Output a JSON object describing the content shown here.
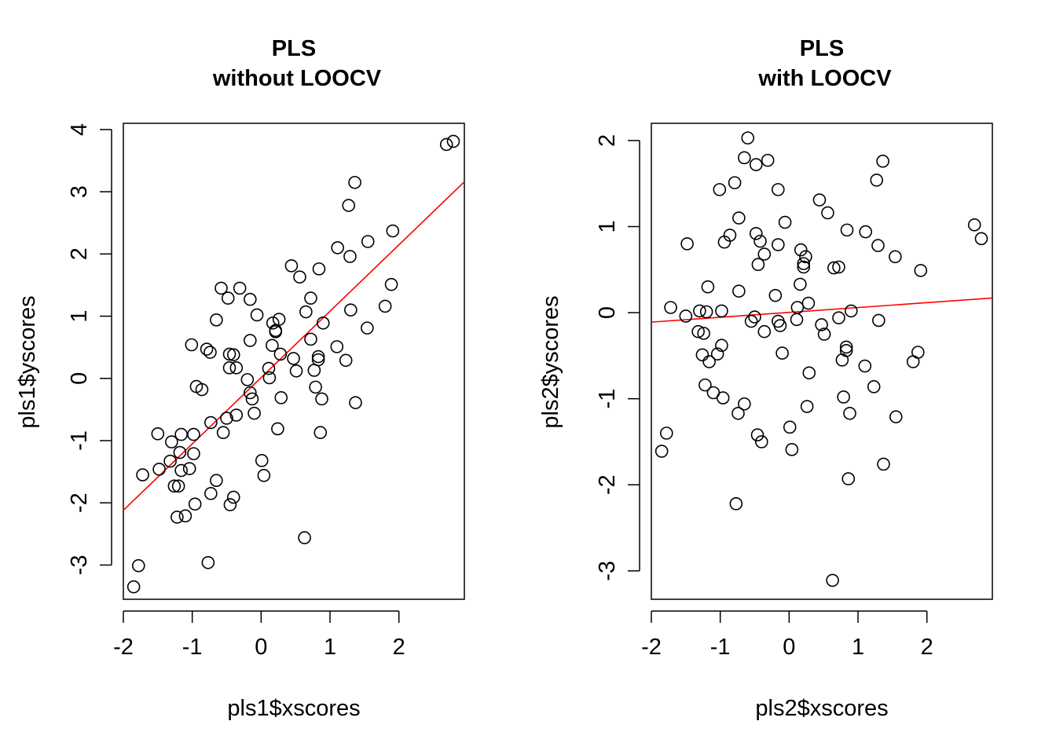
{
  "chart_data": [
    {
      "type": "scatter",
      "title": [
        "PLS",
        "without LOOCV"
      ],
      "xlabel": "pls1$xscores",
      "ylabel": "pls1$yscores",
      "xlim": [
        -2.0,
        2.95
      ],
      "ylim": [
        -3.55,
        4.1
      ],
      "xticks": [
        -2,
        -1,
        0,
        1,
        2
      ],
      "yticks": [
        -3,
        -2,
        -1,
        0,
        1,
        2,
        3,
        4
      ],
      "grid": false,
      "legend": "none",
      "point_color": "#000000",
      "line_color": "#ff0000",
      "fit_line": {
        "x0": -2.0,
        "y0": -2.12,
        "x1": 2.95,
        "y1": 3.16
      },
      "points": [
        [
          -1.85,
          -3.35
        ],
        [
          -1.78,
          -3.01
        ],
        [
          -1.72,
          -1.55
        ],
        [
          -1.5,
          -0.89
        ],
        [
          -1.48,
          -1.46
        ],
        [
          -1.32,
          -1.33
        ],
        [
          -1.3,
          -1.02
        ],
        [
          -1.26,
          -1.73
        ],
        [
          -1.22,
          -2.23
        ],
        [
          -1.2,
          -1.73
        ],
        [
          -1.18,
          -1.19
        ],
        [
          -1.16,
          -1.48
        ],
        [
          -1.16,
          -0.9
        ],
        [
          -1.1,
          -2.21
        ],
        [
          -1.04,
          -1.45
        ],
        [
          -1.01,
          0.54
        ],
        [
          -0.98,
          -1.21
        ],
        [
          -0.98,
          -0.9
        ],
        [
          -0.96,
          -2.02
        ],
        [
          -0.94,
          -0.13
        ],
        [
          -0.86,
          -0.18
        ],
        [
          -0.79,
          0.47
        ],
        [
          -0.77,
          -2.96
        ],
        [
          -0.74,
          0.42
        ],
        [
          -0.73,
          -1.85
        ],
        [
          -0.73,
          -0.71
        ],
        [
          -0.65,
          0.94
        ],
        [
          -0.65,
          -1.64
        ],
        [
          -0.58,
          1.45
        ],
        [
          -0.55,
          -0.87
        ],
        [
          -0.5,
          -0.64
        ],
        [
          -0.48,
          1.29
        ],
        [
          -0.46,
          0.39
        ],
        [
          -0.46,
          0.17
        ],
        [
          -0.45,
          -2.03
        ],
        [
          -0.4,
          0.38
        ],
        [
          -0.4,
          -1.91
        ],
        [
          -0.36,
          -0.59
        ],
        [
          -0.36,
          0.17
        ],
        [
          -0.31,
          1.45
        ],
        [
          -0.2,
          -0.02
        ],
        [
          -0.16,
          1.27
        ],
        [
          -0.16,
          0.61
        ],
        [
          -0.16,
          -0.23
        ],
        [
          -0.13,
          -0.33
        ],
        [
          -0.1,
          -0.56
        ],
        [
          -0.06,
          1.02
        ],
        [
          0.01,
          -1.32
        ],
        [
          0.04,
          -1.56
        ],
        [
          0.11,
          0.16
        ],
        [
          0.12,
          0.01
        ],
        [
          0.16,
          0.53
        ],
        [
          0.17,
          0.89
        ],
        [
          0.21,
          0.75
        ],
        [
          0.21,
          0.77
        ],
        [
          0.24,
          -0.81
        ],
        [
          0.26,
          0.95
        ],
        [
          0.28,
          0.39
        ],
        [
          0.29,
          -0.31
        ],
        [
          0.44,
          1.81
        ],
        [
          0.47,
          0.32
        ],
        [
          0.51,
          0.12
        ],
        [
          0.56,
          1.63
        ],
        [
          0.63,
          -2.56
        ],
        [
          0.65,
          1.07
        ],
        [
          0.72,
          1.29
        ],
        [
          0.72,
          0.63
        ],
        [
          0.77,
          0.13
        ],
        [
          0.79,
          -0.14
        ],
        [
          0.83,
          0.3
        ],
        [
          0.83,
          0.35
        ],
        [
          0.84,
          1.76
        ],
        [
          0.86,
          -0.87
        ],
        [
          0.88,
          -0.33
        ],
        [
          0.9,
          0.89
        ],
        [
          1.1,
          0.51
        ],
        [
          1.11,
          2.1
        ],
        [
          1.23,
          0.29
        ],
        [
          1.27,
          2.78
        ],
        [
          1.29,
          1.96
        ],
        [
          1.3,
          1.1
        ],
        [
          1.36,
          3.15
        ],
        [
          1.37,
          -0.39
        ],
        [
          1.54,
          0.81
        ],
        [
          1.55,
          2.2
        ],
        [
          1.8,
          1.16
        ],
        [
          1.89,
          1.51
        ],
        [
          1.91,
          2.37
        ],
        [
          2.69,
          3.76
        ],
        [
          2.79,
          3.81
        ]
      ]
    },
    {
      "type": "scatter",
      "title": [
        "PLS",
        "with LOOCV"
      ],
      "xlabel": "pls2$xscores",
      "ylabel": "pls2$yscores",
      "xlim": [
        -2.0,
        2.95
      ],
      "ylim": [
        -3.33,
        2.2
      ],
      "xticks": [
        -2,
        -1,
        0,
        1,
        2
      ],
      "yticks": [
        -3,
        -2,
        -1,
        0,
        1,
        2
      ],
      "grid": false,
      "legend": "none",
      "point_color": "#000000",
      "line_color": "#ff0000",
      "fit_line": {
        "x0": -2.0,
        "y0": -0.11,
        "x1": 2.95,
        "y1": 0.17
      },
      "points": [
        [
          -1.85,
          -1.61
        ],
        [
          -1.78,
          -1.4
        ],
        [
          -1.72,
          0.06
        ],
        [
          -1.5,
          -0.04
        ],
        [
          -1.48,
          0.8
        ],
        [
          -1.32,
          -0.22
        ],
        [
          -1.3,
          0.02
        ],
        [
          -1.26,
          -0.49
        ],
        [
          -1.24,
          -0.24
        ],
        [
          -1.22,
          -0.84
        ],
        [
          -1.2,
          0.01
        ],
        [
          -1.18,
          0.3
        ],
        [
          -1.16,
          -0.57
        ],
        [
          -1.1,
          -0.93
        ],
        [
          -1.04,
          -0.48
        ],
        [
          -1.01,
          1.43
        ],
        [
          -0.98,
          -0.38
        ],
        [
          -0.98,
          0.02
        ],
        [
          -0.96,
          -0.99
        ],
        [
          -0.94,
          0.82
        ],
        [
          -0.86,
          0.9
        ],
        [
          -0.79,
          1.51
        ],
        [
          -0.77,
          -2.22
        ],
        [
          -0.74,
          -1.17
        ],
        [
          -0.73,
          1.1
        ],
        [
          -0.73,
          0.25
        ],
        [
          -0.65,
          1.8
        ],
        [
          -0.65,
          -1.06
        ],
        [
          -0.6,
          2.03
        ],
        [
          -0.55,
          -0.1
        ],
        [
          -0.5,
          -0.05
        ],
        [
          -0.48,
          0.92
        ],
        [
          -0.48,
          1.72
        ],
        [
          -0.46,
          -1.42
        ],
        [
          -0.45,
          0.56
        ],
        [
          -0.42,
          0.83
        ],
        [
          -0.4,
          -1.5
        ],
        [
          -0.36,
          0.68
        ],
        [
          -0.36,
          -0.22
        ],
        [
          -0.31,
          1.77
        ],
        [
          -0.2,
          0.2
        ],
        [
          -0.16,
          1.43
        ],
        [
          -0.16,
          0.79
        ],
        [
          -0.16,
          -0.1
        ],
        [
          -0.13,
          -0.15
        ],
        [
          -0.1,
          -0.47
        ],
        [
          -0.06,
          1.05
        ],
        [
          0.01,
          -1.33
        ],
        [
          0.04,
          -1.59
        ],
        [
          0.11,
          -0.08
        ],
        [
          0.12,
          0.06
        ],
        [
          0.16,
          0.33
        ],
        [
          0.17,
          0.73
        ],
        [
          0.21,
          0.53
        ],
        [
          0.21,
          0.57
        ],
        [
          0.24,
          0.65
        ],
        [
          0.26,
          -1.09
        ],
        [
          0.28,
          0.11
        ],
        [
          0.29,
          -0.7
        ],
        [
          0.44,
          1.31
        ],
        [
          0.47,
          -0.14
        ],
        [
          0.51,
          -0.25
        ],
        [
          0.56,
          1.16
        ],
        [
          0.63,
          -3.11
        ],
        [
          0.65,
          0.52
        ],
        [
          0.72,
          0.53
        ],
        [
          0.72,
          -0.06
        ],
        [
          0.77,
          -0.55
        ],
        [
          0.79,
          -0.98
        ],
        [
          0.83,
          -0.4
        ],
        [
          0.83,
          -0.44
        ],
        [
          0.84,
          0.96
        ],
        [
          0.86,
          -1.93
        ],
        [
          0.88,
          -1.17
        ],
        [
          0.9,
          0.02
        ],
        [
          1.1,
          -0.62
        ],
        [
          1.11,
          0.94
        ],
        [
          1.23,
          -0.86
        ],
        [
          1.27,
          1.54
        ],
        [
          1.29,
          0.78
        ],
        [
          1.3,
          -0.09
        ],
        [
          1.36,
          1.76
        ],
        [
          1.37,
          -1.76
        ],
        [
          1.54,
          0.65
        ],
        [
          1.55,
          -1.21
        ],
        [
          1.8,
          -0.57
        ],
        [
          1.87,
          -0.46
        ],
        [
          1.91,
          0.49
        ],
        [
          2.69,
          1.02
        ],
        [
          2.79,
          0.86
        ]
      ]
    }
  ]
}
